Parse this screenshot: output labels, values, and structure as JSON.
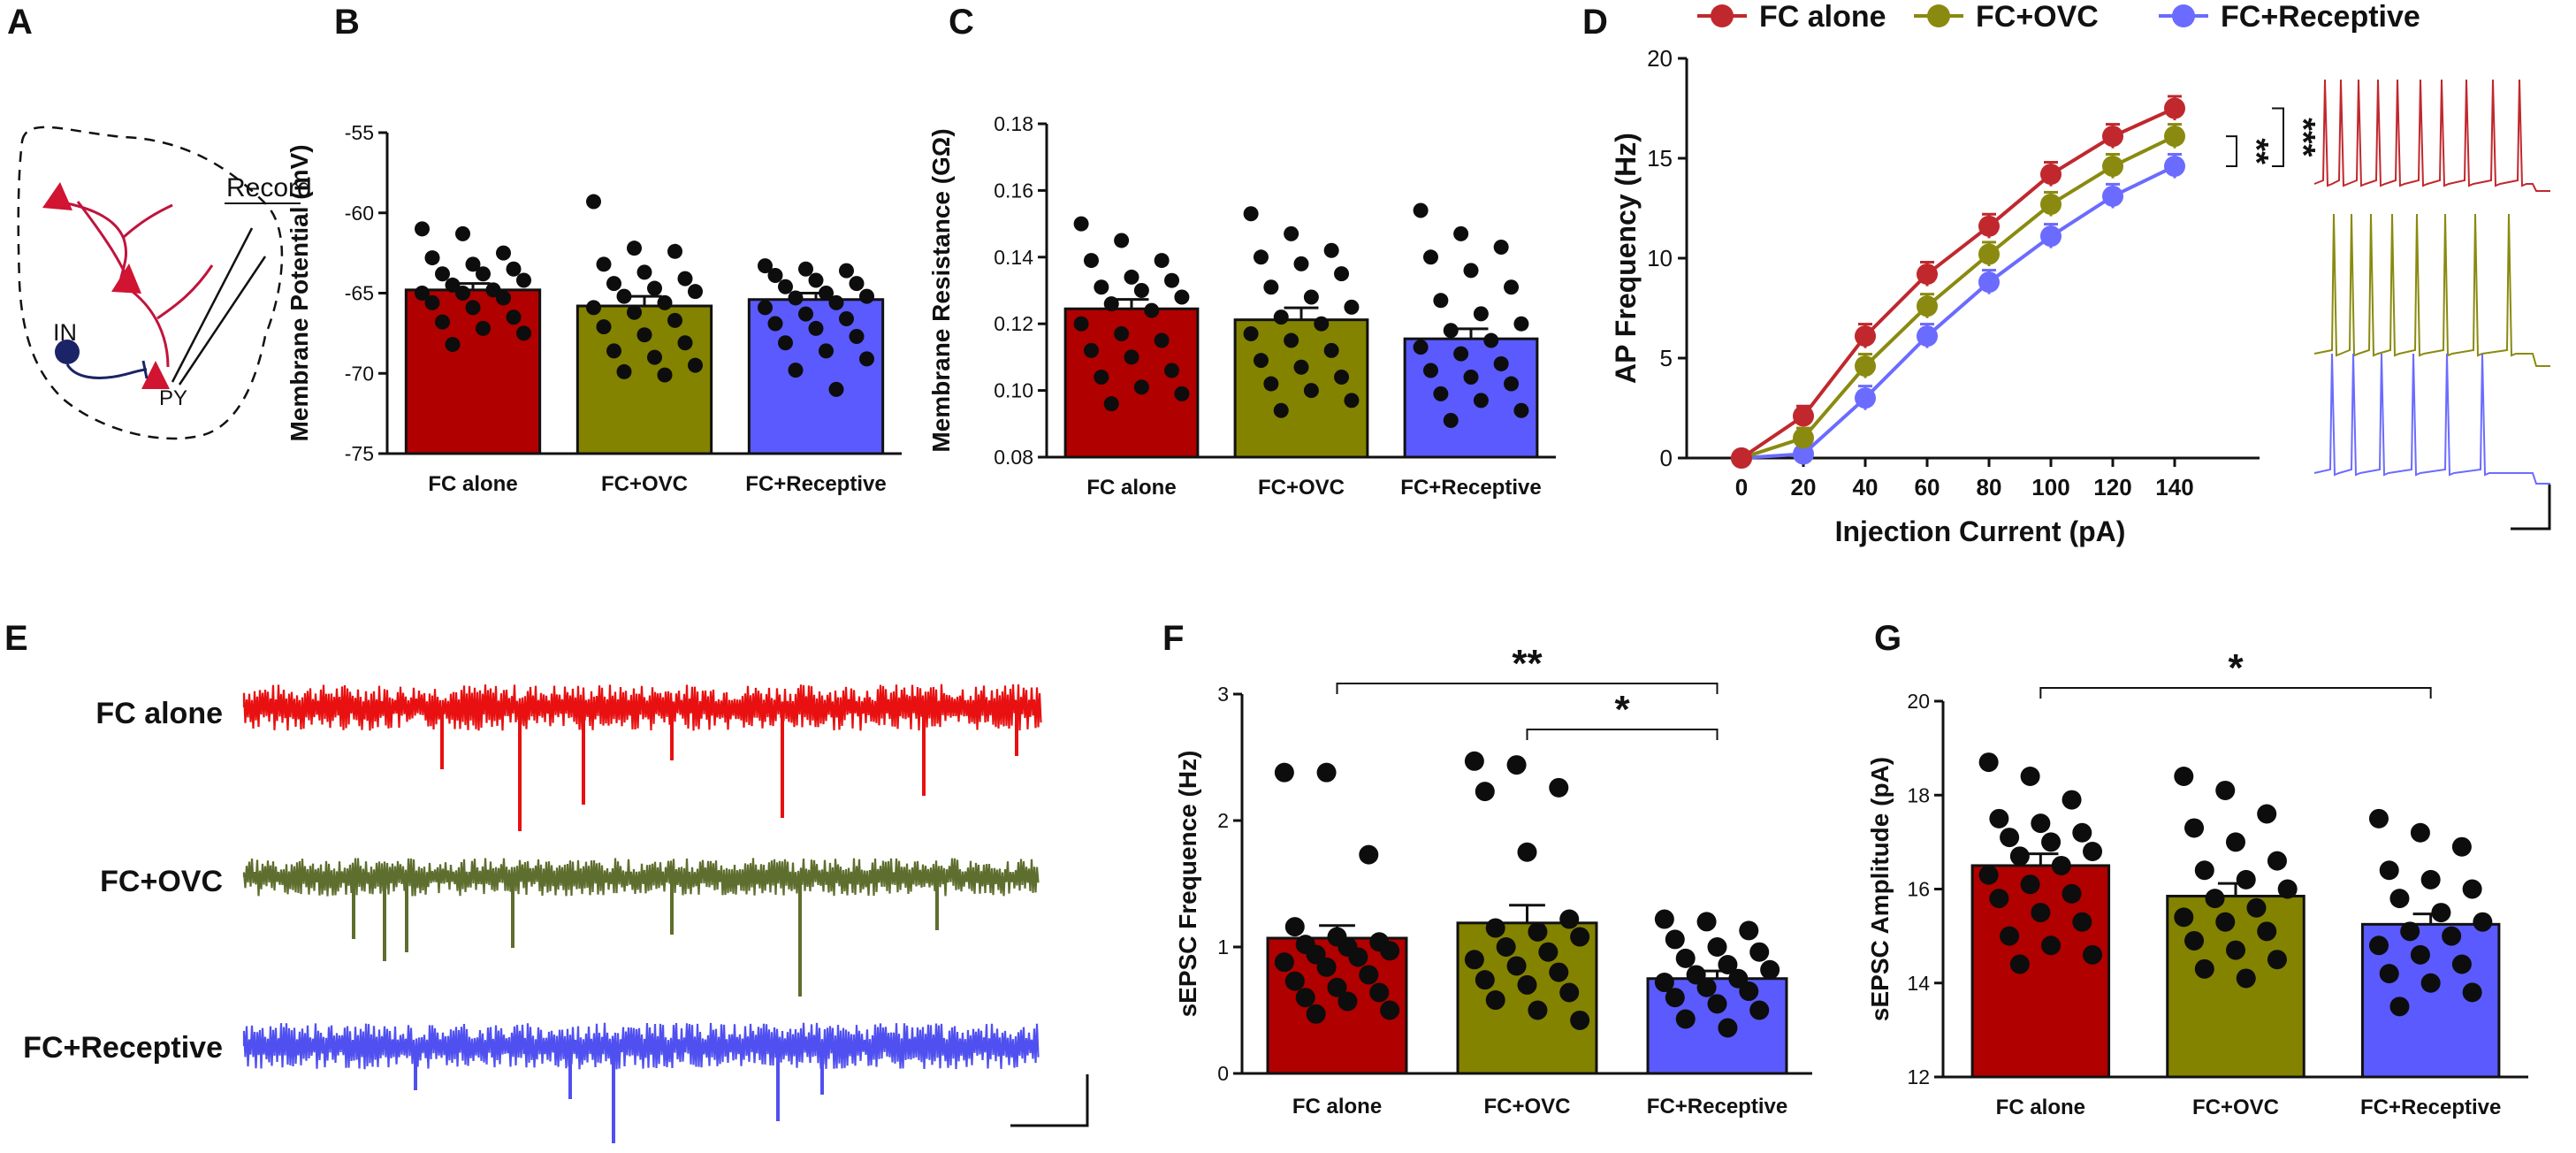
{
  "panels": {
    "A": "A",
    "B": "B",
    "C": "C",
    "D": "D",
    "E": "E",
    "F": "F",
    "G": "G"
  },
  "schematic": {
    "record": "Record",
    "in": "IN",
    "py": "PY"
  },
  "groups": [
    "FC alone",
    "FC+OVC",
    "FC+Receptive"
  ],
  "colors": {
    "fc": "#b00000",
    "ovc": "#838300",
    "rec": "#5a5aff",
    "fc_line": "#c0282e",
    "ovc_line": "#8a8a10",
    "rec_line": "#6b6bff",
    "ovc_trace": "#5e6e2e",
    "ovc_trace2": "#7a9a38"
  },
  "trace_labels": [
    "FC alone",
    "FC+OVC",
    "FC+Receptive"
  ],
  "chart_data": [
    {
      "id": "B",
      "type": "bar",
      "categories": [
        "FC alone",
        "FC+OVC",
        "FC+Receptive"
      ],
      "values": [
        -64.8,
        -65.8,
        -65.4
      ],
      "sem": [
        0.4,
        0.6,
        0.4
      ],
      "ylabel": "Membrane Potential (mV)",
      "ylim": [
        -75,
        -55
      ],
      "yticks": [
        -75,
        -70,
        -65,
        -60,
        -55
      ],
      "ytick_labels": [
        "-75",
        "-70",
        "-65",
        "-60",
        "-55"
      ],
      "points": [
        [
          -61,
          -61.3,
          -62.5,
          -62.8,
          -63.2,
          -63.5,
          -63.8,
          -63.8,
          -64.2,
          -64.5,
          -64.8,
          -65,
          -65,
          -65.3,
          -65.6,
          -65.9,
          -66.5,
          -66.8,
          -67.2,
          -67.5,
          -68.2
        ],
        [
          -59.3,
          -62.2,
          -62.4,
          -63.2,
          -63.7,
          -64.1,
          -64.4,
          -64.7,
          -64.9,
          -65.2,
          -65.6,
          -65.9,
          -66.2,
          -66.7,
          -67.1,
          -67.6,
          -68.1,
          -68.6,
          -69,
          -69.5,
          -69.9,
          -70.1
        ],
        [
          -63.3,
          -63.5,
          -63.6,
          -63.9,
          -64.2,
          -64.4,
          -64.6,
          -65,
          -65.2,
          -65.3,
          -65.6,
          -65.9,
          -66.3,
          -66.6,
          -66.9,
          -67.2,
          -67.7,
          -68.1,
          -68.6,
          -69.1,
          -69.8,
          -71
        ]
      ]
    },
    {
      "id": "C",
      "type": "bar",
      "categories": [
        "FC alone",
        "FC+OVC",
        "FC+Receptive"
      ],
      "values": [
        0.1245,
        0.1212,
        0.1155
      ],
      "sem": [
        0.0028,
        0.0036,
        0.003
      ],
      "ylabel": "Membrane Resistance (GΩ)",
      "ylim": [
        0.08,
        0.18
      ],
      "yticks": [
        0.08,
        0.1,
        0.12,
        0.14,
        0.16,
        0.18
      ],
      "ytick_labels": [
        "0.08",
        "0.10",
        "0.12",
        "0.14",
        "0.16",
        "0.18"
      ],
      "points": [
        [
          0.15,
          0.145,
          0.139,
          0.139,
          0.134,
          0.133,
          0.131,
          0.13,
          0.128,
          0.126,
          0.124,
          0.12,
          0.117,
          0.115,
          0.112,
          0.11,
          0.106,
          0.104,
          0.101,
          0.099,
          0.096
        ],
        [
          0.153,
          0.147,
          0.142,
          0.14,
          0.138,
          0.135,
          0.131,
          0.128,
          0.125,
          0.122,
          0.12,
          0.117,
          0.115,
          0.112,
          0.109,
          0.107,
          0.104,
          0.102,
          0.1,
          0.097,
          0.094
        ],
        [
          0.154,
          0.147,
          0.143,
          0.14,
          0.136,
          0.131,
          0.127,
          0.123,
          0.12,
          0.118,
          0.115,
          0.113,
          0.111,
          0.108,
          0.106,
          0.104,
          0.102,
          0.099,
          0.097,
          0.094,
          0.091
        ]
      ]
    },
    {
      "id": "D",
      "type": "line",
      "xlabel": "Injection Current (pA)",
      "ylabel": "AP Frequency (Hz)",
      "x": [
        0,
        20,
        40,
        60,
        80,
        100,
        120,
        140
      ],
      "xtick_labels": [
        "0",
        "20",
        "40",
        "60",
        "80",
        "100",
        "120",
        "140"
      ],
      "ylim": [
        0,
        20
      ],
      "yticks": [
        0,
        5,
        10,
        15,
        20
      ],
      "ytick_labels": [
        "0",
        "5",
        "10",
        "15",
        "20"
      ],
      "series": [
        {
          "name": "FC alone",
          "values": [
            0,
            2.1,
            6.1,
            9.2,
            11.6,
            14.2,
            16.1,
            17.5
          ],
          "sem": [
            0.2,
            0.5,
            0.6,
            0.6,
            0.6,
            0.6,
            0.6,
            0.6
          ]
        },
        {
          "name": "FC+OVC",
          "values": [
            0,
            1.0,
            4.6,
            7.6,
            10.2,
            12.7,
            14.6,
            16.1
          ],
          "sem": [
            0.2,
            0.5,
            0.6,
            0.6,
            0.6,
            0.6,
            0.6,
            0.6
          ]
        },
        {
          "name": "FC+Receptive",
          "values": [
            0,
            0.2,
            3.0,
            6.1,
            8.8,
            11.1,
            13.1,
            14.6
          ],
          "sem": [
            0.2,
            0.3,
            0.6,
            0.6,
            0.6,
            0.6,
            0.6,
            0.6
          ]
        }
      ],
      "significance": [
        "**",
        "***"
      ]
    },
    {
      "id": "F",
      "type": "bar",
      "categories": [
        "FC alone",
        "FC+OVC",
        "FC+Receptive"
      ],
      "values": [
        1.07,
        1.19,
        0.75
      ],
      "sem": [
        0.1,
        0.14,
        0.06
      ],
      "ylabel": "sEPSC Frequence (Hz)",
      "ylim": [
        0,
        3
      ],
      "yticks": [
        0,
        1,
        2,
        3
      ],
      "ytick_labels": [
        "0",
        "1",
        "2",
        "3"
      ],
      "points": [
        [
          2.38,
          2.38,
          1.73,
          1.16,
          1.08,
          1.04,
          1.02,
          1.0,
          0.97,
          0.94,
          0.92,
          0.88,
          0.84,
          0.78,
          0.73,
          0.68,
          0.64,
          0.6,
          0.57,
          0.5,
          0.47
        ],
        [
          2.47,
          2.44,
          2.26,
          2.23,
          1.75,
          1.22,
          1.15,
          1.12,
          1.08,
          1.0,
          0.96,
          0.9,
          0.85,
          0.8,
          0.74,
          0.7,
          0.64,
          0.58,
          0.5,
          0.42
        ],
        [
          1.22,
          1.2,
          1.13,
          1.06,
          1.0,
          0.96,
          0.91,
          0.86,
          0.82,
          0.78,
          0.75,
          0.72,
          0.68,
          0.65,
          0.6,
          0.55,
          0.5,
          0.43,
          0.36
        ]
      ],
      "significance": [
        {
          "from": 0,
          "to": 2,
          "label": "**"
        },
        {
          "from": 1,
          "to": 2,
          "label": "*"
        }
      ]
    },
    {
      "id": "G",
      "type": "bar",
      "categories": [
        "FC alone",
        "FC+OVC",
        "FC+Receptive"
      ],
      "values": [
        16.5,
        15.85,
        15.25
      ],
      "sem": [
        0.25,
        0.27,
        0.22
      ],
      "ylabel": "sEPSC Amplitude (pA)",
      "ylim": [
        12,
        20
      ],
      "yticks": [
        12,
        14,
        16,
        18,
        20
      ],
      "ytick_labels": [
        "12",
        "14",
        "16",
        "18",
        "20"
      ],
      "points": [
        [
          18.7,
          18.4,
          17.9,
          17.5,
          17.4,
          17.2,
          17.1,
          17.0,
          16.8,
          16.7,
          16.5,
          16.3,
          16.1,
          15.9,
          15.8,
          15.5,
          15.3,
          15.0,
          14.8,
          14.6,
          14.4
        ],
        [
          18.4,
          18.1,
          17.6,
          17.3,
          17.0,
          16.6,
          16.4,
          16.2,
          16.0,
          15.8,
          15.6,
          15.4,
          15.3,
          15.1,
          14.9,
          14.7,
          14.5,
          14.3,
          14.1
        ],
        [
          17.5,
          17.2,
          16.9,
          16.4,
          16.2,
          16.0,
          15.8,
          15.5,
          15.3,
          15.1,
          15.0,
          14.8,
          14.6,
          14.4,
          14.2,
          14.0,
          13.8,
          13.5
        ]
      ],
      "significance": [
        {
          "from": 0,
          "to": 2,
          "label": "*"
        }
      ]
    }
  ]
}
